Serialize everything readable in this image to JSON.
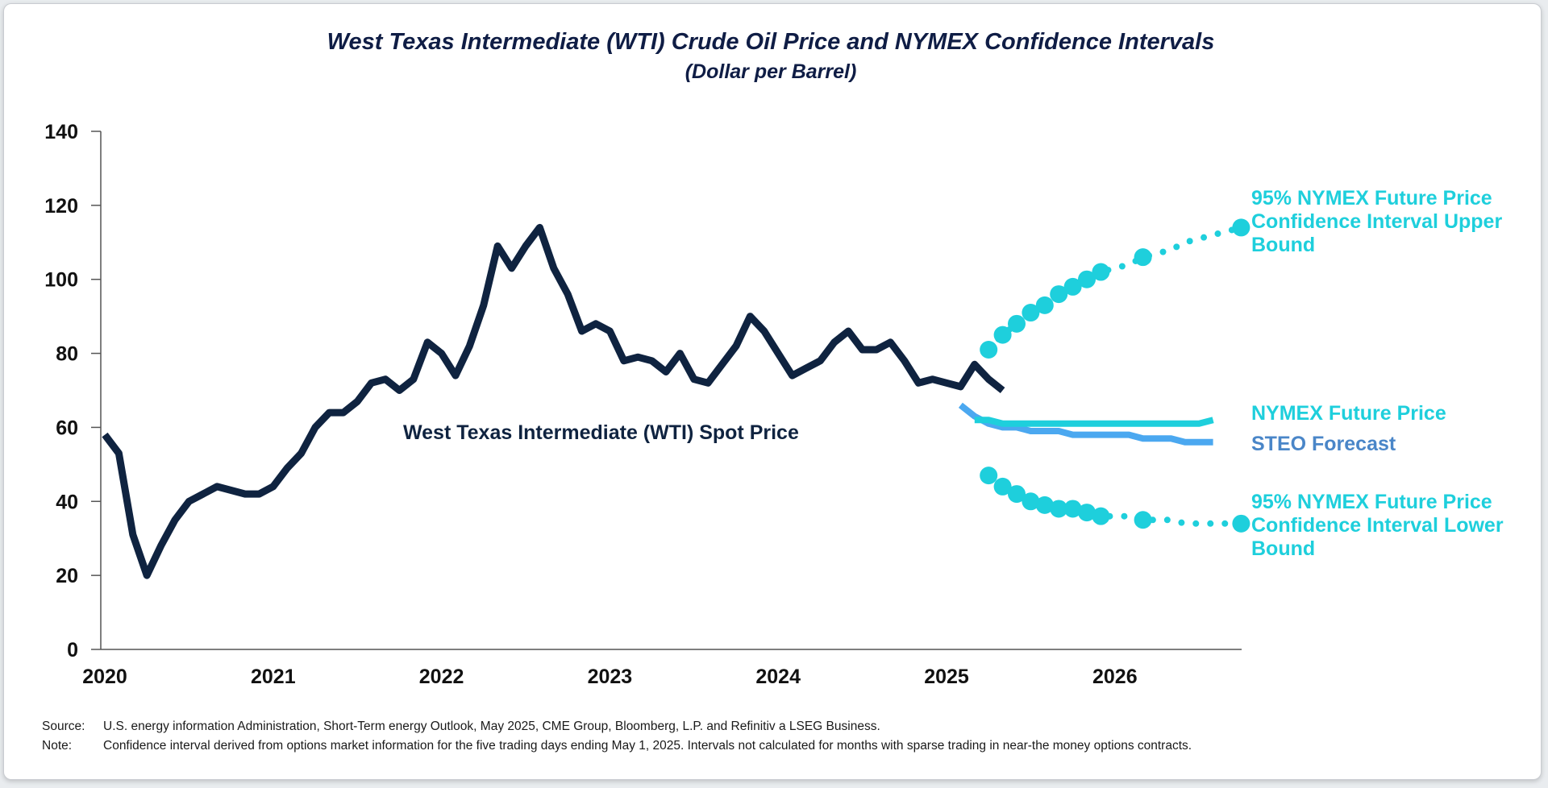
{
  "colors": {
    "spot": "#0f2340",
    "nymex": "#1ecfdc",
    "steo": "#4ba8f0",
    "steo_label": "#4a86c8",
    "title": "#0f1d45",
    "axis": "#555555"
  },
  "chart_data": {
    "type": "line",
    "title": "West Texas Intermediate (WTI) Crude Oil Price and NYMEX Confidence Intervals",
    "subtitle": "(Dollar per Barrel)",
    "xlabel": "",
    "ylabel": "",
    "ylim": [
      0,
      140
    ],
    "yticks": [
      "0",
      "20",
      "40",
      "60",
      "80",
      "100",
      "120",
      "140"
    ],
    "xticks": [
      "2020",
      "2021",
      "2022",
      "2023",
      "2024",
      "2025",
      "2026"
    ],
    "xrange": [
      "2020-01",
      "2026-10"
    ],
    "series": [
      {
        "name": "West Texas Intermediate (WTI) Spot Price",
        "start": "2020-01",
        "values": [
          58,
          53,
          31,
          20,
          28,
          35,
          40,
          42,
          44,
          43,
          42,
          42,
          44,
          49,
          53,
          60,
          64,
          64,
          67,
          72,
          73,
          70,
          73,
          83,
          80,
          74,
          82,
          93,
          109,
          103,
          109,
          114,
          103,
          96,
          86,
          88,
          86,
          78,
          79,
          78,
          75,
          80,
          73,
          72,
          77,
          82,
          90,
          86,
          80,
          74,
          76,
          78,
          83,
          86,
          81,
          81,
          83,
          78,
          72,
          73,
          72,
          71,
          77,
          73,
          70
        ]
      },
      {
        "name": "STEO Forecast",
        "start": "2025-02",
        "values": [
          66,
          63,
          61,
          60,
          60,
          59,
          59,
          59,
          58,
          58,
          58,
          58,
          58,
          57,
          57,
          57,
          56,
          56,
          56
        ]
      },
      {
        "name": "NYMEX Future Price",
        "start": "2025-03",
        "values": [
          62,
          62,
          61,
          61,
          61,
          61,
          61,
          61,
          61,
          61,
          61,
          61,
          61,
          61,
          61,
          61,
          61,
          62
        ]
      },
      {
        "name": "95% NYMEX Future Price Confidence Interval Upper Bound",
        "start": "2025-04",
        "values": [
          81,
          85,
          88,
          91,
          93,
          96,
          98,
          100,
          102,
          103,
          104,
          106,
          107,
          108,
          110,
          111,
          112,
          113,
          114
        ],
        "markers": [
          81,
          85,
          88,
          91,
          93,
          96,
          98,
          100,
          102,
          null,
          null,
          106,
          null,
          null,
          null,
          null,
          null,
          null,
          114
        ]
      },
      {
        "name": "95% NYMEX Future Price Confidence Interval Lower Bound",
        "start": "2025-04",
        "values": [
          47,
          44,
          42,
          40,
          39,
          38,
          38,
          37,
          36,
          36,
          36,
          35,
          35,
          35,
          34,
          34,
          34,
          34,
          34
        ],
        "markers": [
          47,
          44,
          42,
          40,
          39,
          38,
          38,
          37,
          36,
          null,
          null,
          35,
          null,
          null,
          null,
          null,
          null,
          null,
          34
        ]
      }
    ],
    "labels": {
      "spot": "West Texas Intermediate (WTI) Spot Price",
      "nymex": "NYMEX Future Price",
      "steo": "STEO Forecast",
      "upper": [
        "95% NYMEX Future Price",
        "Confidence Interval Upper",
        "Bound"
      ],
      "lower": [
        "95% NYMEX Future Price",
        "Confidence Interval Lower",
        "Bound"
      ]
    }
  },
  "footnotes": {
    "source_key": "Source:",
    "source_text": "U.S. energy information Administration, Short-Term energy Outlook, May 2025, CME Group, Bloomberg, L.P. and Refinitiv a LSEG Business.",
    "note_key": "Note:",
    "note_text": "Confidence interval derived from options market information for the five trading days ending May 1, 2025. Intervals not calculated for months with sparse trading in near-the money options contracts."
  }
}
